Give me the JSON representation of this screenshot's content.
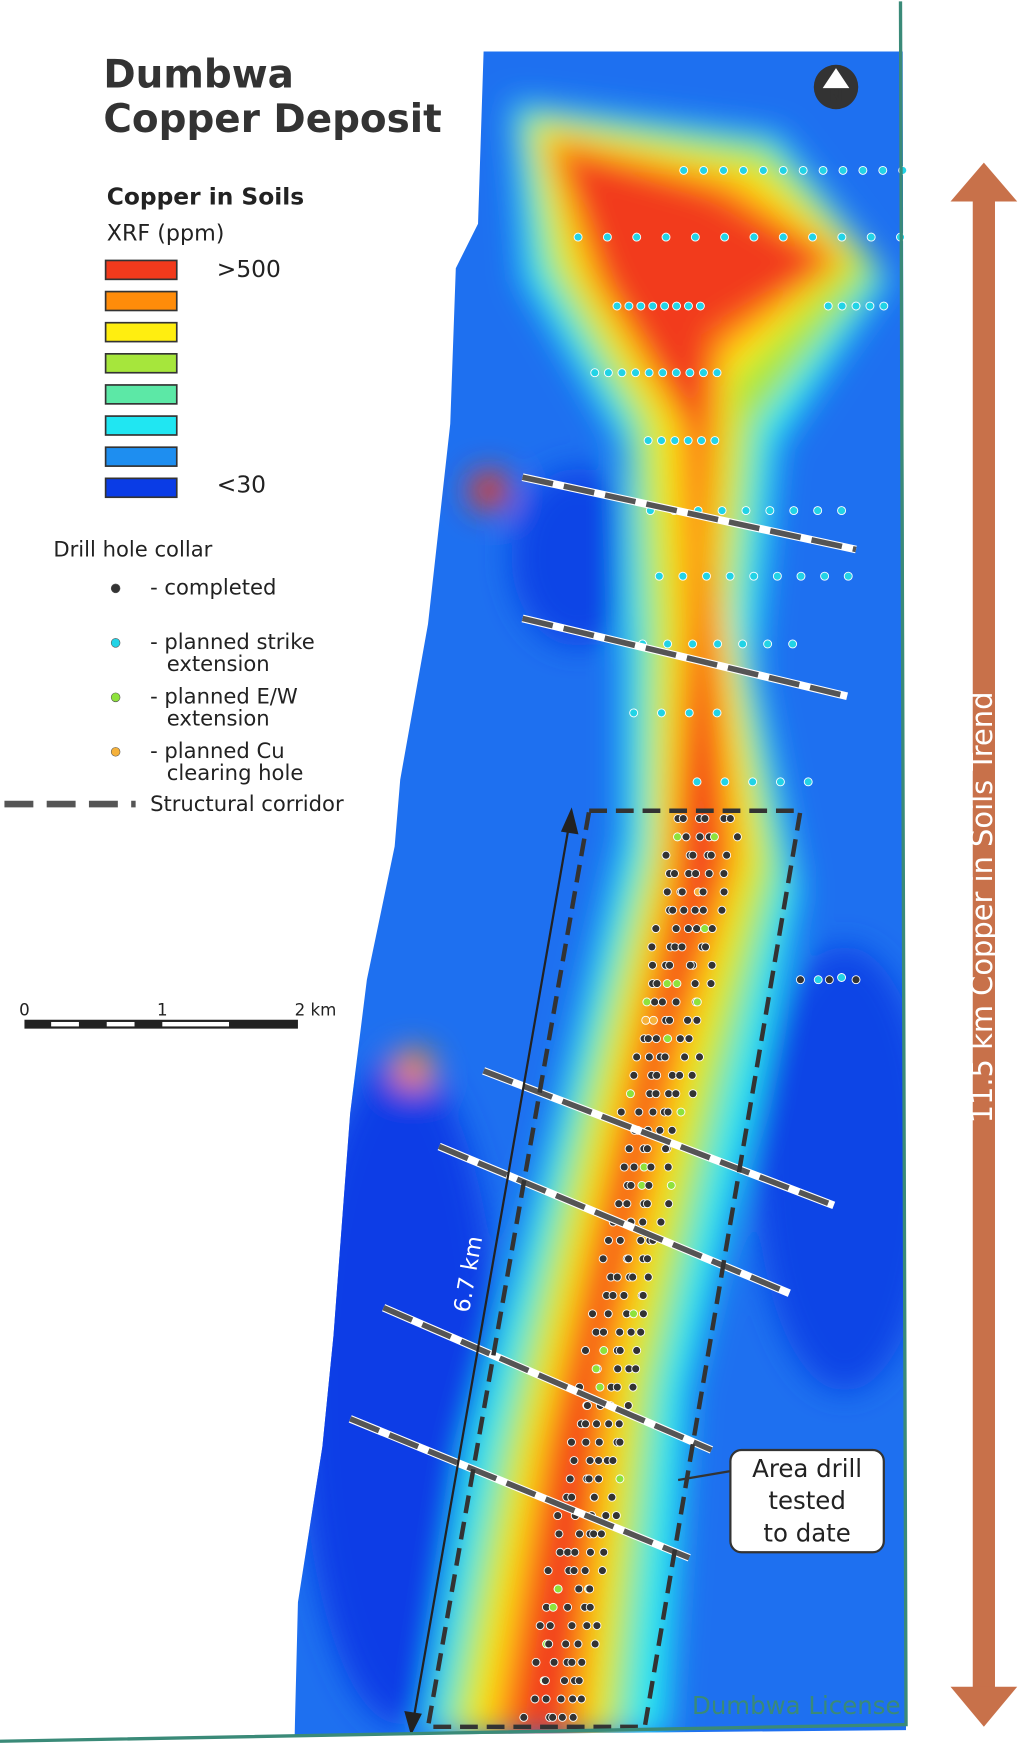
{
  "title": [
    "Dumbwa",
    "Copper Deposit"
  ],
  "legend": {
    "title": "Copper in Soils",
    "unit": "XRF (ppm)",
    "high": ">500",
    "low": "<30",
    "swatches": [
      "#f23a1c",
      "#ff8c0a",
      "#ffee10",
      "#a6e63c",
      "#5ce8a6",
      "#20e6f2",
      "#1e8ef0",
      "#0a3ce6"
    ],
    "collar_title": "Drill hole collar",
    "collars": [
      {
        "label": [
          "- completed"
        ],
        "color": "#333333"
      },
      {
        "label": [
          "- planned strike",
          "extension"
        ],
        "color": "#22d3e6"
      },
      {
        "label": [
          "- planned E/W",
          "extension"
        ],
        "color": "#8ee23c"
      },
      {
        "label": [
          "- planned Cu",
          "clearing hole"
        ],
        "color": "#f5b13a"
      }
    ],
    "corridor": "Structural corridor"
  },
  "scale": [
    "0",
    "1",
    "2 km"
  ],
  "annotations": {
    "length": "6.7 km",
    "tested": [
      "Area drill",
      "tested",
      "to date"
    ],
    "trend": "11.5 km Copper in Soils Trend",
    "license": "Dumbwa License"
  }
}
